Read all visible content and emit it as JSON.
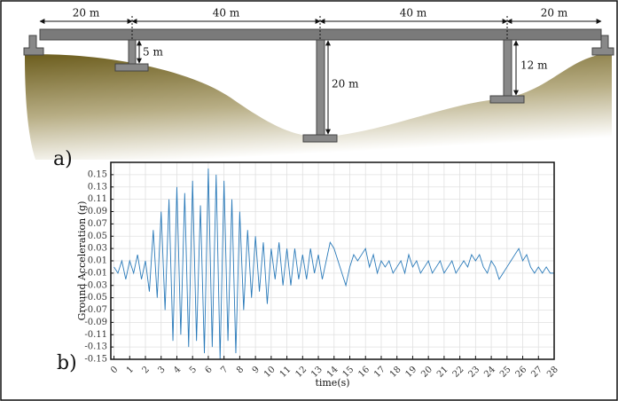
{
  "diagram": {
    "spans": [
      "20 m",
      "40 m",
      "40 m",
      "20 m"
    ],
    "heights": [
      "5 m",
      "20 m",
      "12 m"
    ],
    "panel_label": "a)"
  },
  "chart_data": {
    "type": "line",
    "panel_label": "b)",
    "y_label": "Ground Acceleration (g)",
    "x_label": "time(s)",
    "color": "#2a7ab9",
    "grid": true,
    "xlim": [
      -0.2,
      28
    ],
    "ylim": [
      -0.15,
      0.17
    ],
    "xticks": [
      0,
      1,
      2,
      3,
      4,
      5,
      6,
      7,
      8,
      9,
      10,
      11,
      12,
      13,
      14,
      15,
      16,
      17,
      18,
      19,
      20,
      21,
      22,
      23,
      24,
      25,
      26,
      27,
      28
    ],
    "yticks": [
      0.15,
      0.13,
      0.11,
      0.09,
      0.07,
      0.05,
      0.03,
      0.01,
      -0.01,
      -0.03,
      -0.05,
      -0.07,
      -0.09,
      -0.11,
      -0.13,
      -0.15
    ],
    "x": [
      0,
      0.25,
      0.5,
      0.75,
      1,
      1.25,
      1.5,
      1.75,
      2,
      2.25,
      2.5,
      2.75,
      3,
      3.25,
      3.5,
      3.75,
      4,
      4.25,
      4.5,
      4.75,
      5,
      5.25,
      5.5,
      5.75,
      6,
      6.25,
      6.5,
      6.75,
      7,
      7.25,
      7.5,
      7.75,
      8,
      8.25,
      8.5,
      8.75,
      9,
      9.25,
      9.5,
      9.75,
      10,
      10.25,
      10.5,
      10.75,
      11,
      11.25,
      11.5,
      11.75,
      12,
      12.25,
      12.5,
      12.75,
      13,
      13.25,
      13.5,
      13.75,
      14,
      14.25,
      14.5,
      14.75,
      15,
      15.25,
      15.5,
      15.75,
      16,
      16.25,
      16.5,
      16.75,
      17,
      17.25,
      17.5,
      17.75,
      18,
      18.25,
      18.5,
      18.75,
      19,
      19.25,
      19.5,
      19.75,
      20,
      20.25,
      20.5,
      20.75,
      21,
      21.25,
      21.5,
      21.75,
      22,
      22.25,
      22.5,
      22.75,
      23,
      23.25,
      23.5,
      23.75,
      24,
      24.25,
      24.5,
      24.75,
      25,
      25.25,
      25.5,
      25.75,
      26,
      26.25,
      26.5,
      26.75,
      27,
      27.25,
      27.5,
      27.75,
      28
    ],
    "values": [
      0.0,
      -0.01,
      0.01,
      -0.02,
      0.01,
      -0.01,
      0.02,
      -0.02,
      0.01,
      -0.04,
      0.06,
      -0.05,
      0.09,
      -0.07,
      0.11,
      -0.12,
      0.13,
      -0.11,
      0.12,
      -0.13,
      0.14,
      -0.12,
      0.1,
      -0.14,
      0.16,
      -0.13,
      0.15,
      -0.15,
      0.14,
      -0.12,
      0.11,
      -0.14,
      0.09,
      -0.07,
      0.06,
      -0.05,
      0.05,
      -0.04,
      0.04,
      -0.06,
      0.03,
      -0.02,
      0.04,
      -0.03,
      0.03,
      -0.03,
      0.03,
      -0.02,
      0.02,
      -0.02,
      0.03,
      -0.01,
      0.02,
      -0.02,
      0.01,
      0.04,
      0.03,
      0.01,
      -0.01,
      -0.03,
      0.0,
      0.02,
      0.01,
      0.02,
      0.03,
      0.0,
      0.02,
      -0.01,
      0.01,
      0.0,
      0.01,
      -0.01,
      0.0,
      0.01,
      -0.01,
      0.02,
      0.0,
      0.01,
      -0.01,
      0.0,
      0.01,
      -0.01,
      0.0,
      0.01,
      -0.01,
      0.0,
      0.01,
      -0.01,
      0.0,
      0.01,
      0.0,
      0.02,
      0.01,
      0.02,
      0.0,
      -0.01,
      0.01,
      0.0,
      -0.02,
      -0.01,
      0.0,
      0.01,
      0.02,
      0.03,
      0.01,
      0.02,
      0.0,
      -0.01,
      0.0,
      -0.01,
      0.0,
      -0.01,
      -0.01
    ]
  }
}
